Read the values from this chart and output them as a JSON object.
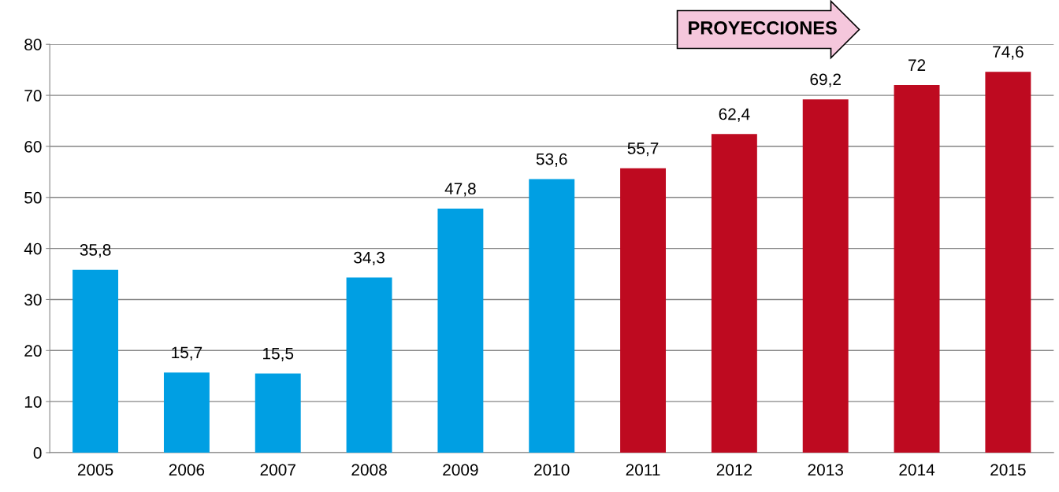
{
  "chart_data": {
    "type": "bar",
    "categories": [
      "2005",
      "2006",
      "2007",
      "2008",
      "2009",
      "2010",
      "2011",
      "2012",
      "2013",
      "2014",
      "2015"
    ],
    "values": [
      35.8,
      15.7,
      15.5,
      34.3,
      47.8,
      53.6,
      55.7,
      62.4,
      69.2,
      72,
      74.6
    ],
    "colors": [
      "#009fe3",
      "#009fe3",
      "#009fe3",
      "#009fe3",
      "#009fe3",
      "#009fe3",
      "#be0a20",
      "#be0a20",
      "#be0a20",
      "#be0a20",
      "#be0a20"
    ],
    "value_labels": [
      "35,8",
      "15,7",
      "15,5",
      "34,3",
      "47,8",
      "53,6",
      "55,7",
      "62,4",
      "69,2",
      "72",
      "74,6"
    ],
    "ylim": [
      0,
      80
    ],
    "yticks": [
      0,
      10,
      20,
      30,
      40,
      50,
      60,
      70,
      80
    ],
    "grid": "y",
    "annotations": [
      "PROYECCIONES"
    ]
  }
}
